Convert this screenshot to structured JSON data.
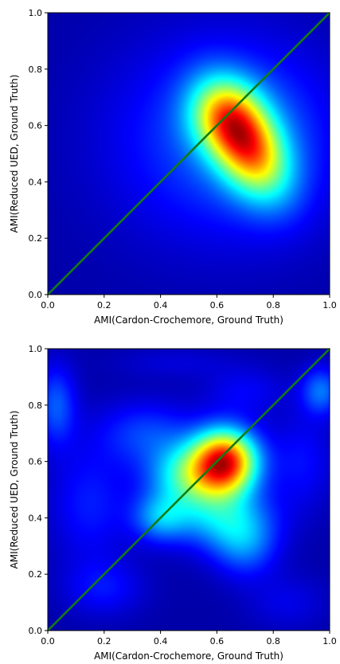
{
  "colors": {
    "diagonal": "#127c12",
    "colormap": "jet",
    "background": "#00007f"
  },
  "chart_data": [
    {
      "type": "heatmap",
      "subtype": "2d-density",
      "colormap": "jet",
      "xlabel": "AMI(Cardon-Crochemore, Ground Truth)",
      "ylabel": "AMI(Reduced UED, Ground Truth)",
      "xlim": [
        0.0,
        1.0
      ],
      "ylim": [
        0.0,
        1.0
      ],
      "xticks": [
        "0.0",
        "0.2",
        "0.4",
        "0.6",
        "0.8",
        "1.0"
      ],
      "yticks": [
        "0.0",
        "0.2",
        "0.4",
        "0.6",
        "0.8",
        "1.0"
      ],
      "reference_line": {
        "from": [
          0.0,
          0.0
        ],
        "to": [
          1.0,
          1.0
        ],
        "color": "#127c12"
      },
      "density_peaks": [
        {
          "x": 0.7,
          "y": 0.54,
          "sx": 0.1,
          "sy": 0.13,
          "rho": -0.45,
          "w": 1.0
        },
        {
          "x": 0.62,
          "y": 0.64,
          "sx": 0.09,
          "sy": 0.09,
          "rho": 0.0,
          "w": 0.35
        },
        {
          "x": 0.55,
          "y": 0.55,
          "sx": 0.25,
          "sy": 0.25,
          "rho": 0.0,
          "w": 0.22
        },
        {
          "x": 0.8,
          "y": 0.55,
          "sx": 0.18,
          "sy": 0.22,
          "rho": 0.0,
          "w": 0.15
        }
      ]
    },
    {
      "type": "heatmap",
      "subtype": "2d-density",
      "colormap": "jet",
      "xlabel": "AMI(Cardon-Crochemore, Ground Truth)",
      "ylabel": "AMI(Reduced UED, Ground Truth)",
      "xlim": [
        0.0,
        1.0
      ],
      "ylim": [
        0.0,
        1.0
      ],
      "xticks": [
        "0.0",
        "0.2",
        "0.4",
        "0.6",
        "0.8",
        "1.0"
      ],
      "yticks": [
        "0.0",
        "0.2",
        "0.4",
        "0.6",
        "0.8",
        "1.0"
      ],
      "reference_line": {
        "from": [
          0.0,
          0.0
        ],
        "to": [
          1.0,
          1.0
        ],
        "color": "#127c12"
      },
      "density_peaks": [
        {
          "x": 0.63,
          "y": 0.6,
          "sx": 0.08,
          "sy": 0.08,
          "rho": 0.0,
          "w": 1.0
        },
        {
          "x": 0.5,
          "y": 0.55,
          "sx": 0.1,
          "sy": 0.08,
          "rho": 0.0,
          "w": 0.45
        },
        {
          "x": 0.4,
          "y": 0.4,
          "sx": 0.07,
          "sy": 0.06,
          "rho": 0.0,
          "w": 0.28
        },
        {
          "x": 0.62,
          "y": 0.4,
          "sx": 0.12,
          "sy": 0.08,
          "rho": 0.0,
          "w": 0.33
        },
        {
          "x": 0.7,
          "y": 0.3,
          "sx": 0.08,
          "sy": 0.08,
          "rho": 0.0,
          "w": 0.22
        },
        {
          "x": 0.35,
          "y": 0.7,
          "sx": 0.12,
          "sy": 0.08,
          "rho": 0.0,
          "w": 0.18
        },
        {
          "x": 0.15,
          "y": 0.45,
          "sx": 0.1,
          "sy": 0.15,
          "rho": 0.0,
          "w": 0.14
        },
        {
          "x": 0.2,
          "y": 0.15,
          "sx": 0.1,
          "sy": 0.07,
          "rho": 0.0,
          "w": 0.12
        },
        {
          "x": 0.03,
          "y": 0.8,
          "sx": 0.05,
          "sy": 0.1,
          "rho": 0.0,
          "w": 0.22
        },
        {
          "x": 0.97,
          "y": 0.85,
          "sx": 0.05,
          "sy": 0.06,
          "rho": 0.0,
          "w": 0.25
        },
        {
          "x": 0.9,
          "y": 0.6,
          "sx": 0.08,
          "sy": 0.12,
          "rho": 0.0,
          "w": 0.12
        },
        {
          "x": 0.7,
          "y": 0.85,
          "sx": 0.1,
          "sy": 0.06,
          "rho": 0.0,
          "w": 0.1
        },
        {
          "x": 0.85,
          "y": 0.1,
          "sx": 0.1,
          "sy": 0.07,
          "rho": 0.0,
          "w": 0.08
        },
        {
          "x": 0.45,
          "y": 0.95,
          "sx": 0.15,
          "sy": 0.04,
          "rho": 0.0,
          "w": 0.06
        }
      ]
    }
  ]
}
